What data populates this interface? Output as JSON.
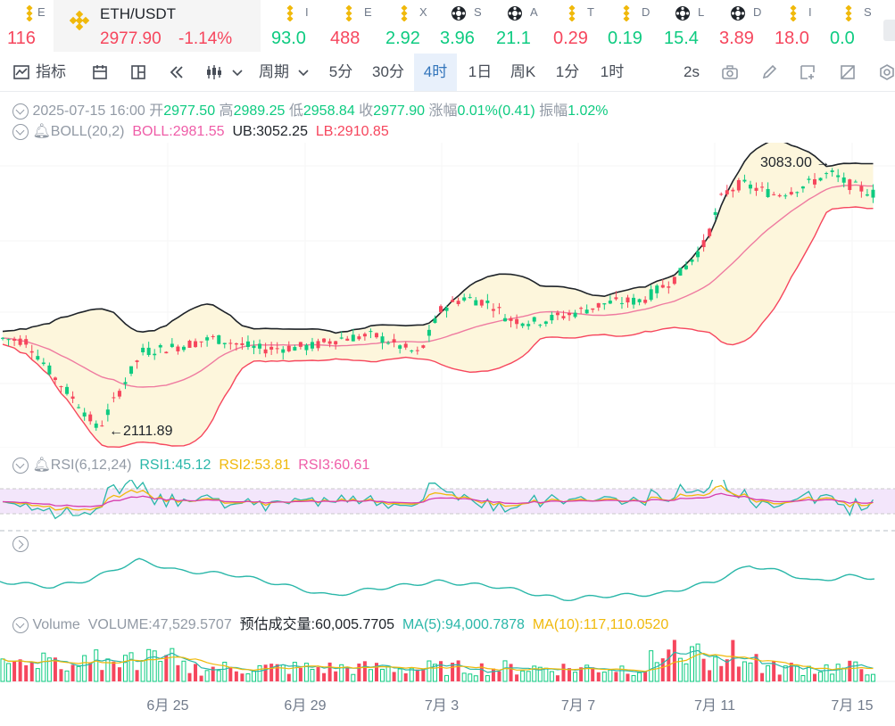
{
  "ticker": {
    "active": {
      "symbol": "ETH/USDT",
      "price": "2977.90",
      "change": "-1.14%"
    },
    "items": [
      {
        "sym": "E",
        "price": "116",
        "dir": "down",
        "icon": "binance-icon"
      },
      {
        "sym": "I",
        "price": "93.0",
        "dir": "up",
        "icon": "binance-icon"
      },
      {
        "sym": "E",
        "price": "488",
        "dir": "down",
        "icon": "binance-icon"
      },
      {
        "sym": "X",
        "price": "2.92",
        "dir": "up",
        "icon": "binance-icon"
      },
      {
        "sym": "S",
        "price": "3.96",
        "dir": "up",
        "icon": "network-icon"
      },
      {
        "sym": "A",
        "price": "21.1",
        "dir": "up",
        "icon": "network-icon"
      },
      {
        "sym": "T",
        "price": "0.29",
        "dir": "down",
        "icon": "binance-icon"
      },
      {
        "sym": "D",
        "price": "0.19",
        "dir": "up",
        "icon": "binance-icon"
      },
      {
        "sym": "L",
        "price": "15.4",
        "dir": "up",
        "icon": "network-icon"
      },
      {
        "sym": "D",
        "price": "3.89",
        "dir": "down",
        "icon": "network-icon"
      },
      {
        "sym": "I",
        "price": "18.0",
        "dir": "down",
        "icon": "binance-icon"
      },
      {
        "sym": "S",
        "price": "0.0",
        "dir": "up",
        "icon": "binance-icon"
      }
    ]
  },
  "toolbar": {
    "indicators": "指标",
    "period": "周期",
    "intervals": [
      "5分",
      "30分",
      "4时",
      "1日",
      "周K",
      "1分",
      "1时"
    ],
    "selected": "4时",
    "refresh": "2s"
  },
  "ohlc": {
    "date": "2025-07-15 16:00",
    "open_label": "开",
    "open": "2977.50",
    "high_label": "高",
    "high": "2989.25",
    "low_label": "低",
    "low": "2958.84",
    "close_label": "收",
    "close": "2977.90",
    "change_label": "涨幅",
    "change": "0.01%(0.41)",
    "amp_label": "振幅",
    "amp": "1.02%"
  },
  "boll": {
    "label": "BOLL(20,2)",
    "mid": "BOLL:2981.55",
    "ub": "UB:3052.25",
    "lb": "LB:2910.85"
  },
  "annotations": {
    "high": "3083.00",
    "low": "2111.89"
  },
  "rsi": {
    "label": "RSI(6,12,24)",
    "r1": "RSI1:45.12",
    "r2": "RSI2:53.81",
    "r3": "RSI3:60.61"
  },
  "volume": {
    "label": "Volume",
    "vol": "VOLUME:47,529.5707",
    "est_label": "预估成交量:",
    "est": "60,005.7705",
    "ma5": "MA(5):94,000.7878",
    "ma10": "MA(10):117,110.0520"
  },
  "xaxis": [
    "6月 25",
    "6月 29",
    "7月 3",
    "7月 7",
    "7月 11",
    "7月 15"
  ],
  "colors": {
    "up": "#0ecb81",
    "down": "#f6465d",
    "upper": "#1e2329",
    "mid": "#ef7ba0",
    "lower": "#f6465d",
    "band": "#fdf6dc",
    "rsi1": "#2ab7a9",
    "rsi2": "#f0b90b",
    "rsi3": "#d63eae"
  },
  "chart_data": {
    "type": "line",
    "title": "",
    "price_range": [
      2111.89,
      3083.0
    ],
    "x": [
      "6月 25",
      "6月 29",
      "7月 3",
      "7月 7",
      "7月 11",
      "7月 15"
    ]
  }
}
